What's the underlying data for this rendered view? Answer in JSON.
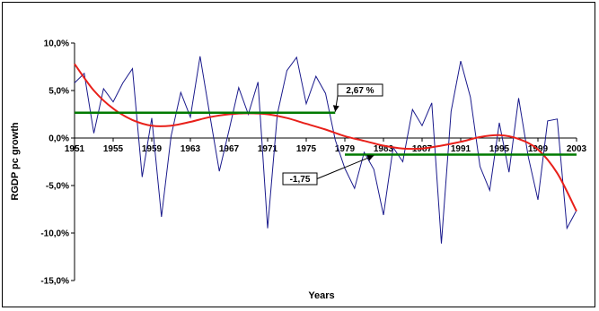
{
  "chart_data": {
    "type": "line",
    "title": "",
    "xlabel": "Years",
    "ylabel": "RGDP pc growth",
    "xlim": [
      1951,
      2003
    ],
    "ylim": [
      -15,
      10
    ],
    "x_ticks": [
      1951,
      1955,
      1959,
      1963,
      1967,
      1971,
      1975,
      1979,
      1983,
      1987,
      1991,
      1995,
      1999,
      2003
    ],
    "x_tick_labels": [
      "1951",
      "1955",
      "1959",
      "1963",
      "1967",
      "1971",
      "1975",
      "1979",
      "1983",
      "1987",
      "1991",
      "1995",
      "1999",
      "2003"
    ],
    "y_ticks": [
      10,
      5,
      0,
      -5,
      -10,
      -15
    ],
    "y_tick_labels": [
      "10,0%",
      "5,0%",
      "0,0%",
      "-5,0%",
      "-10,0%",
      "-15,0%"
    ],
    "grid": false,
    "series": [
      {
        "name": "",
        "kind": "growth",
        "color": "#1a1a8c",
        "x": [
          1951,
          1952,
          1953,
          1954,
          1955,
          1956,
          1957,
          1958,
          1959,
          1960,
          1961,
          1962,
          1963,
          1964,
          1965,
          1966,
          1967,
          1968,
          1969,
          1970,
          1971,
          1972,
          1973,
          1974,
          1975,
          1976,
          1977,
          1978,
          1979,
          1980,
          1981,
          1982,
          1983,
          1984,
          1985,
          1986,
          1987,
          1988,
          1989,
          1990,
          1991,
          1992,
          1993,
          1994,
          1995,
          1996,
          1997,
          1998,
          1999,
          2000,
          2001,
          2002,
          2003
        ],
        "y": [
          5.8,
          6.8,
          0.5,
          5.2,
          3.8,
          5.8,
          7.3,
          -4.1,
          2.1,
          -8.3,
          0.2,
          4.8,
          2.2,
          8.6,
          2.5,
          -3.5,
          0.8,
          5.3,
          2.5,
          5.9,
          -9.5,
          2.5,
          7.1,
          8.5,
          3.6,
          6.5,
          4.7,
          -0.2,
          -3.2,
          -5.3,
          -1.5,
          -3.3,
          -8.1,
          -1.0,
          -2.5,
          3.0,
          1.3,
          3.7,
          -11.1,
          2.8,
          8.1,
          4.3,
          -3.0,
          -5.5,
          1.6,
          -3.6,
          4.2,
          -2.0,
          -6.5,
          1.8,
          2.0,
          -9.5,
          -7.6
        ]
      },
      {
        "name": "",
        "kind": "trend",
        "color": "#e8201a",
        "x": [
          1951,
          1953,
          1955,
          1957,
          1959,
          1961,
          1963,
          1965,
          1967,
          1969,
          1971,
          1973,
          1975,
          1977,
          1979,
          1981,
          1983,
          1985,
          1987,
          1989,
          1991,
          1993,
          1995,
          1997,
          1999,
          2001,
          2003
        ],
        "y": [
          7.8,
          5.0,
          3.1,
          1.9,
          1.3,
          1.3,
          1.7,
          2.2,
          2.5,
          2.6,
          2.5,
          2.1,
          1.5,
          0.9,
          0.2,
          -0.3,
          -0.8,
          -1.1,
          -1.1,
          -0.8,
          -0.4,
          0.1,
          0.3,
          -0.1,
          -1.2,
          -3.7,
          -7.7
        ]
      }
    ],
    "reference_lines": [
      {
        "label": "2,67 %",
        "value": 2.67,
        "x_start": 1951,
        "x_end": 1978,
        "color": "#007a00"
      },
      {
        "label": "-1,75",
        "value": -1.75,
        "x_start": 1979,
        "x_end": 2003,
        "color": "#007a00"
      }
    ]
  }
}
